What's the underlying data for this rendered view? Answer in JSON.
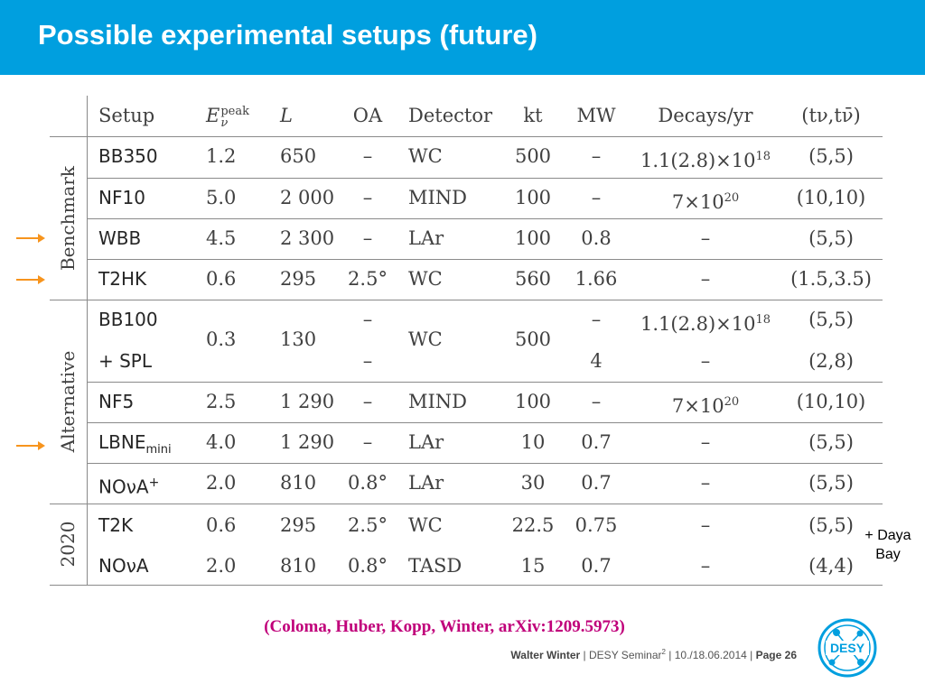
{
  "slide": {
    "title": "Possible experimental setups (future)",
    "note": [
      "+ Daya",
      "Bay"
    ],
    "citation": "(Coloma, Huber, Kopp, Winter, arXiv:1209.5973)"
  },
  "footer": {
    "author": "Walter Winter",
    "sep1": " | ",
    "event": "DESY Seminar",
    "event_sup": "2",
    "sep2": " | ",
    "date": "10./18.06.2014",
    "sep3": " | ",
    "page": "Page 26"
  },
  "logo": {
    "text": "DESY",
    "color": "#009fdf"
  },
  "colors": {
    "title_bar": "#009fdf",
    "arrow": "#f7941d",
    "citation": "#c0007a"
  },
  "table": {
    "header": {
      "setup": "Setup",
      "e_base": "E",
      "e_sup": "peak",
      "e_sub": "ν",
      "L": "L",
      "OA": "OA",
      "detector": "Detector",
      "kt": "kt",
      "mw": "MW",
      "decays": "Decays/yr",
      "t": "(tν,tν̄)"
    },
    "groups": {
      "benchmark": "Benchmark",
      "alternative": "Alternative",
      "y2020": "2020"
    },
    "rows": {
      "bb350": {
        "setup": "BB350",
        "e": "1.2",
        "l": "650",
        "oa": "–",
        "det": "WC",
        "kt": "500",
        "mw": "–",
        "dec_base": "1.1(2.8)×10",
        "dec_exp": "18",
        "t": "(5,5)"
      },
      "nf10": {
        "setup": "NF10",
        "e": "5.0",
        "l": "2 000",
        "oa": "–",
        "det": "MIND",
        "kt": "100",
        "mw": "–",
        "dec_base": "7×10",
        "dec_exp": "20",
        "t": "(10,10)"
      },
      "wbb": {
        "setup": "WBB",
        "e": "4.5",
        "l": "2 300",
        "oa": "–",
        "det": "LAr",
        "kt": "100",
        "mw": "0.8",
        "dec": "–",
        "t": "(5,5)"
      },
      "t2hk": {
        "setup": "T2HK",
        "e": "0.6",
        "l": "295",
        "oa": "2.5°",
        "det": "WC",
        "kt": "560",
        "mw": "1.66",
        "dec": "–",
        "t": "(1.5,3.5)"
      },
      "bb100": {
        "setup": "BB100",
        "oa": "–",
        "mw": "–",
        "dec_base": "1.1(2.8)×10",
        "dec_exp": "18",
        "t": "(5,5)"
      },
      "bb100_shared": {
        "e": "0.3",
        "l": "130",
        "det": "WC",
        "kt": "500"
      },
      "spl": {
        "setup": "+ SPL",
        "oa": "–",
        "mw": "4",
        "dec": "–",
        "t": "(2,8)"
      },
      "nf5": {
        "setup": "NF5",
        "e": "2.5",
        "l": "1 290",
        "oa": "–",
        "det": "MIND",
        "kt": "100",
        "mw": "–",
        "dec_base": "7×10",
        "dec_exp": "20",
        "t": "(10,10)"
      },
      "lbne": {
        "setup": "LBNE",
        "setup_sub": "mini",
        "e": "4.0",
        "l": "1 290",
        "oa": "–",
        "det": "LAr",
        "kt": "10",
        "mw": "0.7",
        "dec": "–",
        "t": "(5,5)"
      },
      "nova_plus": {
        "setup": "NOνA",
        "setup_sup": "+",
        "e": "2.0",
        "l": "810",
        "oa": "0.8°",
        "det": "LAr",
        "kt": "30",
        "mw": "0.7",
        "dec": "–",
        "t": "(5,5)"
      },
      "t2k": {
        "setup": "T2K",
        "e": "0.6",
        "l": "295",
        "oa": "2.5°",
        "det": "WC",
        "kt": "22.5",
        "mw": "0.75",
        "dec": "–",
        "t": "(5,5)"
      },
      "nova": {
        "setup": "NOνA",
        "e": "2.0",
        "l": "810",
        "oa": "0.8°",
        "det": "TASD",
        "kt": "15",
        "mw": "0.7",
        "dec": "–",
        "t": "(4,4)"
      }
    }
  }
}
